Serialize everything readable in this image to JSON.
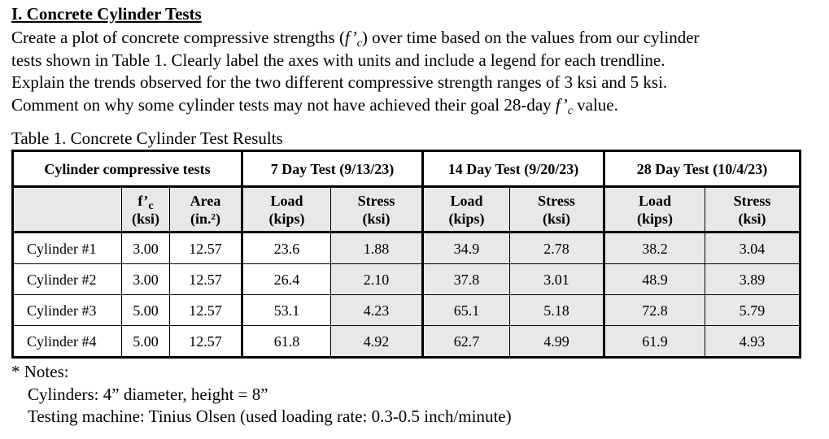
{
  "section": {
    "title": "I. Concrete Cylinder Tests",
    "lines": [
      [
        "Create a plot of concrete compressive strengths (",
        "f’",
        "c",
        ") over time based on the values from our cylinder"
      ],
      [
        "tests shown in Table 1. Clearly label the axes with units and include a legend for each trendline."
      ],
      [
        "Explain the trends observed for the two different compressive strength ranges of 3 ksi and 5 ksi."
      ],
      [
        "Comment on why some cylinder tests may not have achieved their goal 28-day ",
        "f’",
        "c",
        " value."
      ]
    ]
  },
  "table": {
    "caption": "Table 1. Concrete Cylinder Test Results",
    "group_headers": [
      "Cylinder compressive tests",
      "7 Day Test (9/13/23)",
      "14 Day Test (9/20/23)",
      "28 Day Test (10/4/23)"
    ],
    "column_headers": [
      {
        "symbol": "f’",
        "subscript": "c",
        "unit": "(ksi)"
      },
      {
        "label": "Area",
        "unit": "(in.²)"
      },
      {
        "label": "Load",
        "unit": "(kips)"
      },
      {
        "label": "Stress",
        "unit": "(ksi)"
      },
      {
        "label": "Load",
        "unit": "(kips)"
      },
      {
        "label": "Stress",
        "unit": "(ksi)"
      },
      {
        "label": "Load",
        "unit": "(kips)"
      },
      {
        "label": "Stress",
        "unit": "(ksi)"
      }
    ],
    "rows": [
      [
        "Cylinder #1",
        "3.00",
        "12.57",
        "23.6",
        "1.88",
        "34.9",
        "2.78",
        "38.2",
        "3.04"
      ],
      [
        "Cylinder #2",
        "3.00",
        "12.57",
        "26.4",
        "2.10",
        "37.8",
        "3.01",
        "48.9",
        "3.89"
      ],
      [
        "Cylinder #3",
        "5.00",
        "12.57",
        "53.1",
        "4.23",
        "65.1",
        "5.18",
        "72.8",
        "5.79"
      ],
      [
        "Cylinder #4",
        "5.00",
        "12.57",
        "61.8",
        "4.92",
        "62.7",
        "4.99",
        "61.9",
        "4.93"
      ]
    ]
  },
  "notes": {
    "title": "* Notes:",
    "lines": [
      "Cylinders: 4” diameter, height = 8”",
      "Testing machine: Tinius Olsen (used loading rate: 0.3-0.5 inch/minute)"
    ]
  }
}
